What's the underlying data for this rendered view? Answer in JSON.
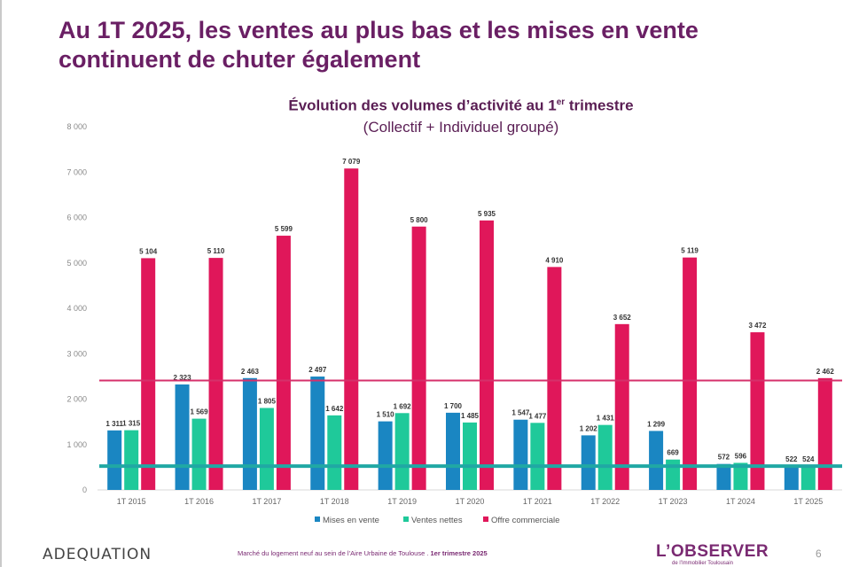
{
  "header": {
    "title_line1": "Au 1T 2025, les ventes au plus bas et les mises en vente",
    "title_line2": "continuent de chuter également"
  },
  "colors": {
    "mises": "#1a86c2",
    "ventes": "#1fc99a",
    "offre": "#e0175a",
    "offre_ref_line": "#d6306b",
    "ventes_ref_line": "#20a8a4"
  },
  "chart_data": {
    "type": "bar",
    "title": "Évolution des volumes d’activité au 1",
    "title_sup": "er",
    "title_end": " trimestre",
    "subtitle": "(Collectif + Individuel groupé)",
    "categories": [
      "1T 2015",
      "1T 2016",
      "1T 2017",
      "1T 2018",
      "1T 2019",
      "1T 2020",
      "1T 2021",
      "1T 2022",
      "1T 2023",
      "1T 2024",
      "1T 2025"
    ],
    "series": [
      {
        "name": "Mises en vente",
        "values": [
          1311,
          2323,
          2463,
          2497,
          1510,
          1700,
          1547,
          1202,
          1299,
          572,
          522
        ],
        "labels": [
          "1 311",
          "2 323",
          "2 463",
          "2 497",
          "1 510",
          "1 700",
          "1 547",
          "1 202",
          "1 299",
          "572",
          "522"
        ]
      },
      {
        "name": "Ventes nettes",
        "values": [
          1315,
          1569,
          1805,
          1642,
          1692,
          1485,
          1477,
          1431,
          669,
          596,
          524
        ],
        "labels": [
          "1 315",
          "1 569",
          "1 805",
          "1 642",
          "1 692",
          "1 485",
          "1 477",
          "1 431",
          "669",
          "596",
          "524"
        ]
      },
      {
        "name": "Offre commerciale",
        "values": [
          5104,
          5110,
          5599,
          7079,
          5800,
          5935,
          4910,
          3652,
          5119,
          3472,
          2462
        ],
        "labels": [
          "5 104",
          "5 110",
          "5 599",
          "7 079",
          "5 800",
          "5 935",
          "4 910",
          "3 652",
          "5 119",
          "3 472",
          "2 462"
        ]
      }
    ],
    "yticks": [
      0,
      1000,
      2000,
      3000,
      4000,
      5000,
      6000,
      7000,
      8000
    ],
    "ytick_labels": [
      "0",
      "1 000",
      "2 000",
      "3 000",
      "4 000",
      "5 000",
      "6 000",
      "7 000",
      "8 000"
    ],
    "ylim": [
      0,
      8000
    ],
    "reference_lines": [
      {
        "name": "offre-level-2025",
        "value": 2410
      },
      {
        "name": "ventes-level-2025",
        "value": 524
      }
    ],
    "legend": [
      "Mises en vente",
      "Ventes nettes",
      "Offre commerciale"
    ],
    "legend_position": "bottom"
  },
  "footer": {
    "brand": "ADEQUATION",
    "note": "Marché du logement neuf au sein de l’Aire Urbaine de Toulouse . ",
    "note_bold": "1er trimestre 2025",
    "logo": "L’OBSERVER",
    "logo_sub": "de l’Immobilier Toulousain",
    "page": "6"
  }
}
